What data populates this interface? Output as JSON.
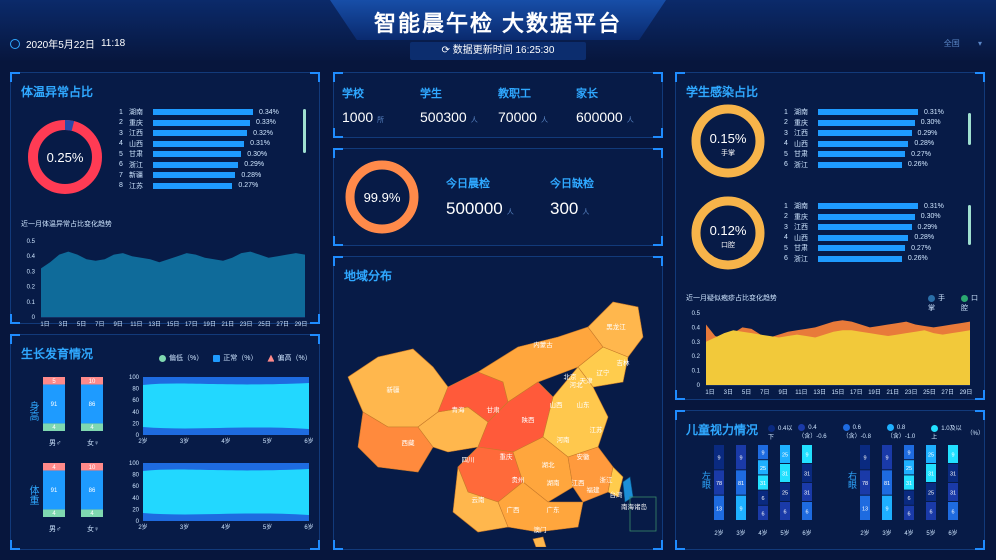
{
  "header": {
    "title": "智能晨午检 大数据平台",
    "date": "2020年5月22日",
    "time": "11:18",
    "update_label": "数据更新时间",
    "update_time": "16:25:30",
    "region": "全国"
  },
  "temp": {
    "title": "体温异常占比",
    "pct": "0.25%",
    "fraction": 0.25,
    "chart_title": "近一月体温异常占比变化趋势",
    "rank": [
      [
        "1",
        "湖南",
        "0.34%"
      ],
      [
        "2",
        "重庆",
        "0.33%"
      ],
      [
        "3",
        "江西",
        "0.32%"
      ],
      [
        "4",
        "山西",
        "0.31%"
      ],
      [
        "5",
        "甘肃",
        "0.30%"
      ],
      [
        "6",
        "浙江",
        "0.29%"
      ],
      [
        "7",
        "新疆",
        "0.28%"
      ],
      [
        "8",
        "江苏",
        "0.27%"
      ]
    ],
    "yticks": [
      "0.5",
      "0.4",
      "0.3",
      "0.2",
      "0.1",
      "0"
    ],
    "xticks": [
      "1日",
      "3日",
      "5日",
      "7日",
      "9日",
      "11日",
      "13日",
      "15日",
      "17日",
      "19日",
      "21日",
      "23日",
      "25日",
      "27日",
      "29日"
    ]
  },
  "stats": {
    "school_label": "学校",
    "school": "1000",
    "school_unit": "所",
    "student_label": "学生",
    "student": "500300",
    "student_unit": "人",
    "teacher_label": "教职工",
    "teacher": "70000",
    "teacher_unit": "人",
    "parent_label": "家长",
    "parent": "600000",
    "parent_unit": "人"
  },
  "check": {
    "pct": "99.9%",
    "morning_label": "今日晨检",
    "morning": "500000",
    "morning_unit": "人",
    "absent_label": "今日缺检",
    "absent": "300",
    "absent_unit": "人"
  },
  "map": {
    "title": "地域分布",
    "labels": [
      "黑龙江",
      "吉林",
      "内蒙古",
      "新疆",
      "西藏",
      "青海",
      "甘肃",
      "陕西",
      "山西",
      "河南",
      "四川",
      "重庆",
      "湖北",
      "安徽",
      "江苏",
      "湖南",
      "江西",
      "浙江",
      "贵州",
      "云南",
      "广西",
      "广东",
      "福建",
      "台湾",
      "澳门",
      "南海诸岛",
      "山东",
      "河北",
      "北京",
      "天津",
      "辽宁"
    ]
  },
  "growth": {
    "title": "生长发育情况",
    "legend": [
      "偏低（%）",
      "正常（%）",
      "偏高（%）"
    ],
    "height_label": "身高",
    "weight_label": "体重",
    "h_boys": [
      "5",
      "91",
      "4"
    ],
    "h_girls": [
      "10",
      "86",
      "4"
    ],
    "w_boys": [
      "4",
      "91",
      "4"
    ],
    "w_girls": [
      "10",
      "86",
      "4"
    ],
    "boy": "男♂",
    "girl": "女♀",
    "yticks": [
      "100",
      "80",
      "60",
      "40",
      "20",
      "0"
    ],
    "ages": [
      "2岁",
      "3岁",
      "4岁",
      "5岁",
      "6岁"
    ]
  },
  "infect": {
    "title": "学生感染占比",
    "hand_pct": "0.15%",
    "hand_label": "手掌",
    "mouth_pct": "0.12%",
    "mouth_label": "口腔",
    "rank1": [
      [
        "1",
        "湖南",
        "0.31%"
      ],
      [
        "2",
        "重庆",
        "0.30%"
      ],
      [
        "3",
        "江西",
        "0.29%"
      ],
      [
        "4",
        "山西",
        "0.28%"
      ],
      [
        "5",
        "甘肃",
        "0.27%"
      ],
      [
        "6",
        "浙江",
        "0.26%"
      ]
    ],
    "rank2": [
      [
        "1",
        "湖南",
        "0.31%"
      ],
      [
        "2",
        "重庆",
        "0.30%"
      ],
      [
        "3",
        "江西",
        "0.29%"
      ],
      [
        "4",
        "山西",
        "0.28%"
      ],
      [
        "5",
        "甘肃",
        "0.27%"
      ],
      [
        "6",
        "浙江",
        "0.26%"
      ]
    ],
    "chart_title": "近一月疑似疱疹占比变化趋势",
    "legend": [
      "手掌",
      "口腔"
    ],
    "yticks": [
      "0.5",
      "0.4",
      "0.3",
      "0.2",
      "0.1",
      "0"
    ],
    "xticks": [
      "1日",
      "3日",
      "5日",
      "7日",
      "9日",
      "11日",
      "13日",
      "15日",
      "17日",
      "19日",
      "21日",
      "23日",
      "25日",
      "27日",
      "29日"
    ]
  },
  "vision": {
    "title": "儿童视力情况",
    "legend": [
      "0.4以下",
      "0.4（含）-0.6",
      "0.6（含）-0.8",
      "0.8（含）-1.0",
      "1.0及以上",
      "（%）"
    ],
    "left_label": "左眼",
    "right_label": "右眼",
    "ages": [
      "2岁",
      "3岁",
      "4岁",
      "5岁",
      "6岁"
    ],
    "cols": [
      [
        "9",
        "13",
        ""
      ],
      [
        "9",
        "81",
        "13"
      ],
      [
        "25",
        "31",
        "6"
      ],
      [
        "25",
        "31",
        "6"
      ],
      [
        "9",
        "31",
        "6"
      ]
    ],
    "vals": {
      "a": [
        "9",
        "78",
        "13"
      ],
      "b": [
        "9",
        "81",
        "9"
      ],
      "c": [
        "9",
        "25",
        "31",
        "6",
        "6"
      ],
      "d": [
        "25",
        "31",
        "25",
        "6"
      ],
      "e": [
        "9",
        "31",
        "31",
        "6"
      ]
    }
  }
}
